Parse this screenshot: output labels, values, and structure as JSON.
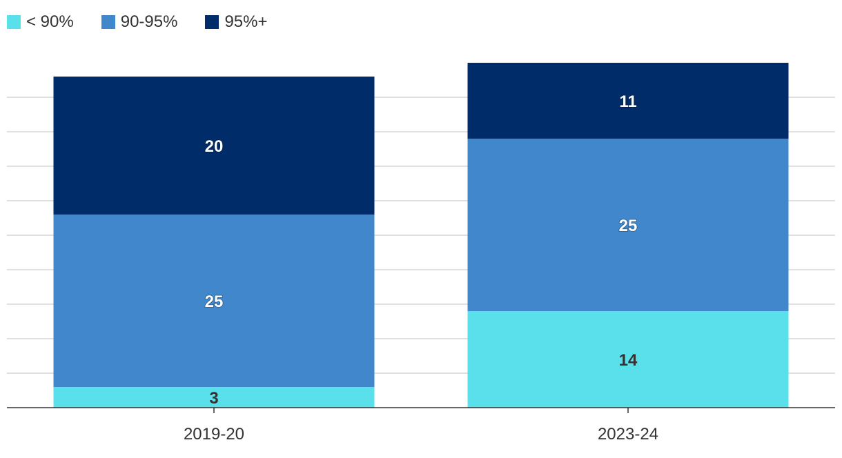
{
  "legend": [
    {
      "label": "< 90%",
      "color": "#5ae0ea"
    },
    {
      "label": "90-95%",
      "color": "#4088cb"
    },
    {
      "label": "95%+",
      "color": "#002d6a"
    }
  ],
  "chart_data": {
    "type": "bar",
    "stacked": true,
    "categories": [
      "2019-20",
      "2023-24"
    ],
    "series": [
      {
        "name": "< 90%",
        "values": [
          3,
          14
        ],
        "color": "#5ae0ea",
        "label_color": "#333333"
      },
      {
        "name": "90-95%",
        "values": [
          25,
          25
        ],
        "color": "#4088cb",
        "label_color": "#ffffff"
      },
      {
        "name": "95%+",
        "values": [
          20,
          11
        ],
        "color": "#002d6a",
        "label_color": "#ffffff"
      }
    ],
    "title": "",
    "xlabel": "",
    "ylabel": "",
    "ylim": [
      0,
      60
    ],
    "grid": true,
    "legend_position": "top-left"
  }
}
